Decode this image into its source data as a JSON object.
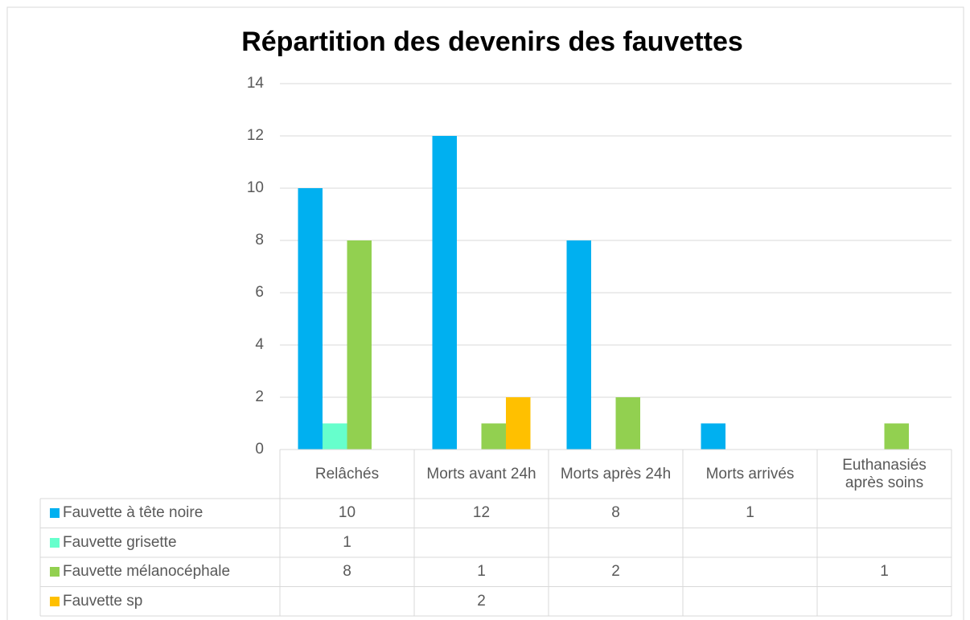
{
  "chart_data": {
    "type": "bar",
    "title": "Répartition des devenirs des fauvettes",
    "categories": [
      "Relâchés",
      "Morts avant 24h",
      "Morts après 24h",
      "Morts arrivés",
      "Euthanasiés après soins"
    ],
    "series": [
      {
        "name": "Fauvette à tête noire",
        "color": "#00b0f0",
        "values": [
          10,
          12,
          8,
          1,
          null
        ]
      },
      {
        "name": "Fauvette grisette",
        "color": "#66ffcc",
        "values": [
          1,
          null,
          null,
          null,
          null
        ]
      },
      {
        "name": "Fauvette mélanocéphale",
        "color": "#92d050",
        "values": [
          8,
          1,
          2,
          null,
          1
        ]
      },
      {
        "name": "Fauvette sp",
        "color": "#ffc000",
        "values": [
          null,
          2,
          null,
          null,
          null
        ]
      }
    ],
    "ylim": [
      0,
      14
    ],
    "yticks": [
      0,
      2,
      4,
      6,
      8,
      10,
      12,
      14
    ],
    "grid": true,
    "data_table": true
  }
}
